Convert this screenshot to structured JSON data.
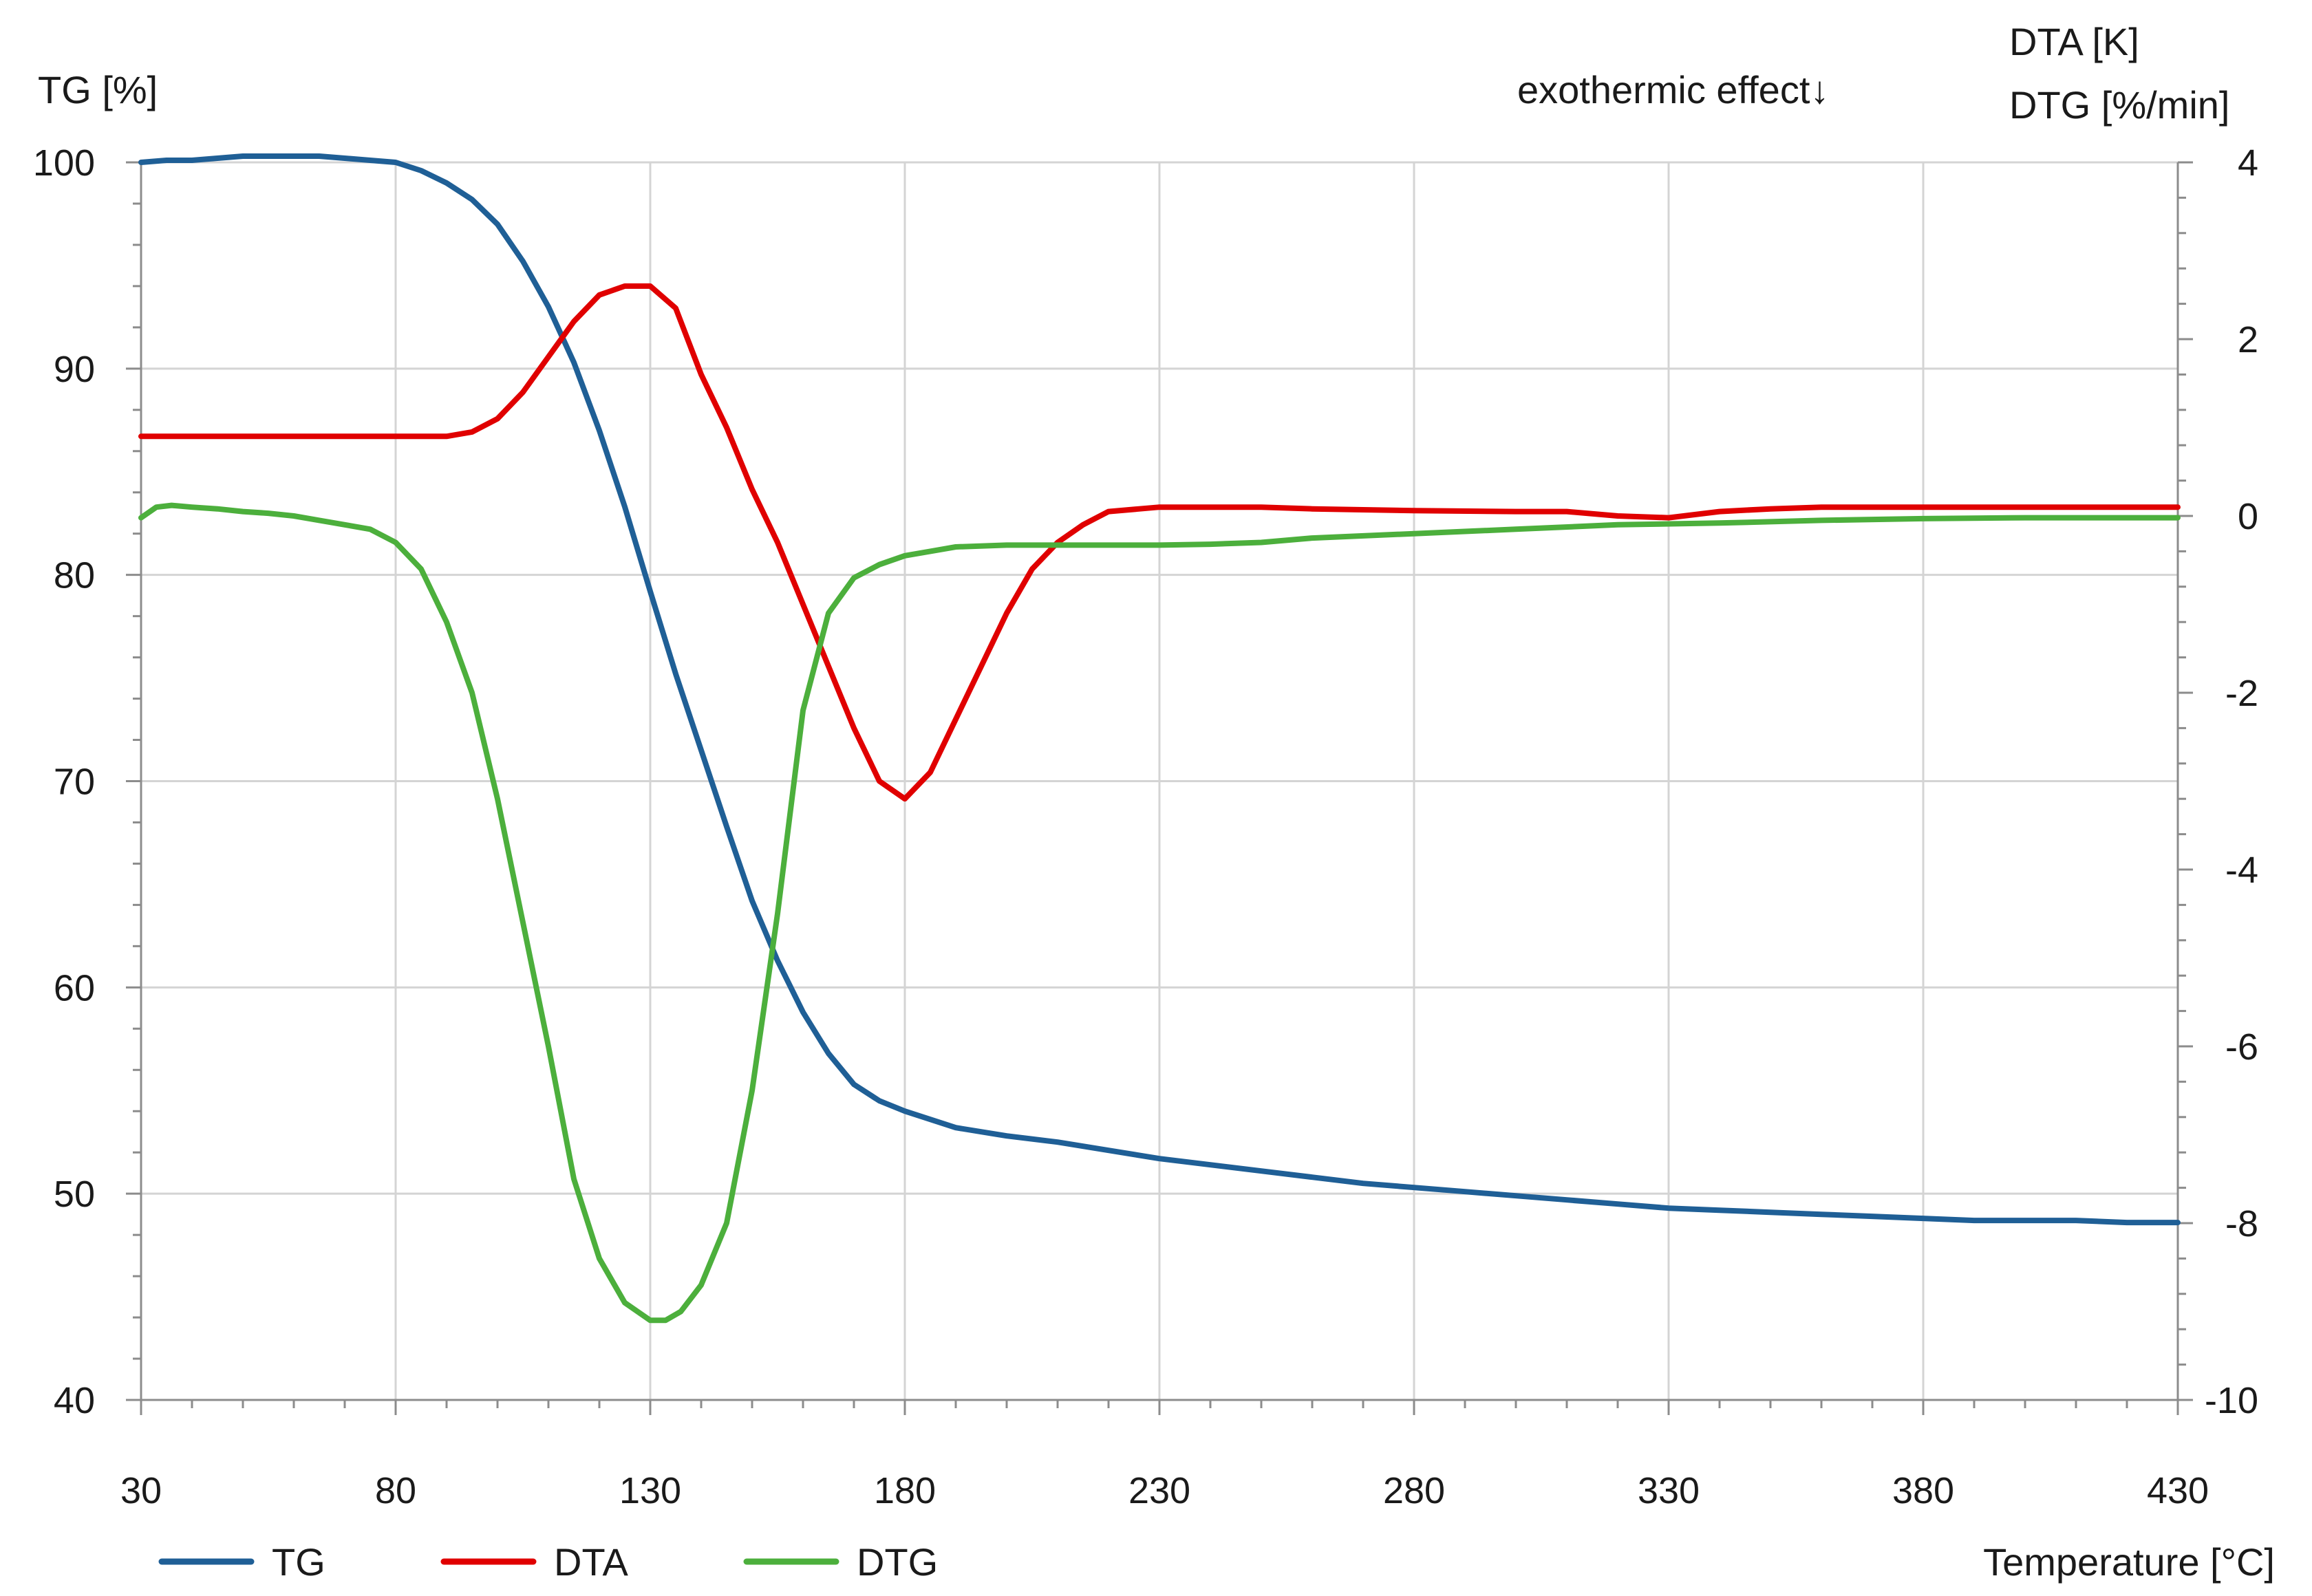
{
  "chart_data": {
    "type": "line",
    "title": "",
    "xlabel": "Temperature [°C]",
    "ylabel_left": "TG [%]",
    "ylabel_right_lines": [
      "DTA [K]",
      "DTG [%/min]"
    ],
    "annotation": "exothermic effect↓",
    "xlim": [
      30,
      430
    ],
    "ylim_left": [
      40,
      100
    ],
    "ylim_right": [
      -10,
      4
    ],
    "x_ticks": [
      30,
      80,
      130,
      180,
      230,
      280,
      330,
      380,
      430
    ],
    "y_ticks_left": [
      40,
      50,
      60,
      70,
      80,
      90,
      100
    ],
    "y_ticks_right": [
      -10,
      -8,
      -6,
      -4,
      -2,
      0,
      2,
      4
    ],
    "grid": true,
    "legend_position": "bottom-left",
    "series": [
      {
        "name": "TG",
        "axis": "left",
        "color": "#1f5f96",
        "x": [
          30,
          35,
          40,
          45,
          50,
          55,
          60,
          65,
          70,
          75,
          80,
          85,
          90,
          95,
          100,
          105,
          110,
          115,
          120,
          125,
          130,
          135,
          140,
          145,
          150,
          155,
          160,
          165,
          170,
          175,
          180,
          190,
          200,
          210,
          220,
          230,
          240,
          250,
          260,
          270,
          280,
          290,
          300,
          310,
          320,
          330,
          340,
          350,
          360,
          370,
          380,
          390,
          400,
          410,
          420,
          430
        ],
        "values": [
          100,
          100.1,
          100.1,
          100.2,
          100.3,
          100.3,
          100.3,
          100.3,
          100.2,
          100.1,
          100,
          99.6,
          99,
          98.2,
          97,
          95.2,
          93,
          90.3,
          87,
          83.3,
          79.2,
          75.2,
          71.5,
          67.8,
          64.2,
          61.3,
          58.8,
          56.8,
          55.3,
          54.5,
          54,
          53.2,
          52.8,
          52.5,
          52.1,
          51.7,
          51.4,
          51.1,
          50.8,
          50.5,
          50.3,
          50.1,
          49.9,
          49.7,
          49.5,
          49.3,
          49.2,
          49.1,
          49,
          48.9,
          48.8,
          48.7,
          48.7,
          48.7,
          48.6,
          48.6
        ]
      },
      {
        "name": "DTA",
        "axis": "right",
        "color": "#e00000",
        "x": [
          30,
          40,
          50,
          60,
          70,
          80,
          85,
          90,
          95,
          100,
          105,
          110,
          115,
          120,
          125,
          130,
          135,
          140,
          145,
          150,
          155,
          160,
          165,
          170,
          175,
          180,
          185,
          190,
          195,
          200,
          205,
          210,
          215,
          220,
          230,
          240,
          250,
          260,
          280,
          300,
          310,
          320,
          330,
          340,
          350,
          360,
          380,
          400,
          430
        ],
        "values": [
          0.9,
          0.9,
          0.9,
          0.9,
          0.9,
          0.9,
          0.9,
          0.9,
          0.95,
          1.1,
          1.4,
          1.8,
          2.2,
          2.5,
          2.6,
          2.6,
          2.35,
          1.6,
          1,
          0.3,
          -0.3,
          -1,
          -1.7,
          -2.4,
          -3,
          -3.2,
          -2.9,
          -2.3,
          -1.7,
          -1.1,
          -0.6,
          -0.3,
          -0.1,
          0.05,
          0.1,
          0.1,
          0.1,
          0.08,
          0.06,
          0.05,
          0.05,
          0,
          -0.02,
          0.05,
          0.08,
          0.1,
          0.1,
          0.1,
          0.1
        ]
      },
      {
        "name": "DTG",
        "axis": "right",
        "color": "#4caf3c",
        "x": [
          30,
          33,
          36,
          40,
          45,
          50,
          55,
          60,
          65,
          70,
          75,
          80,
          85,
          90,
          95,
          100,
          105,
          110,
          115,
          120,
          125,
          130,
          133,
          136,
          140,
          145,
          150,
          155,
          160,
          165,
          170,
          175,
          180,
          185,
          190,
          200,
          210,
          220,
          230,
          240,
          250,
          260,
          280,
          300,
          320,
          340,
          360,
          380,
          400,
          430
        ],
        "values": [
          -0.02,
          0.1,
          0.12,
          0.1,
          0.08,
          0.05,
          0.03,
          0,
          -0.05,
          -0.1,
          -0.15,
          -0.3,
          -0.6,
          -1.2,
          -2,
          -3.2,
          -4.6,
          -6,
          -7.5,
          -8.4,
          -8.9,
          -9.1,
          -9.1,
          -9,
          -8.7,
          -8,
          -6.5,
          -4.5,
          -2.2,
          -1.1,
          -0.7,
          -0.55,
          -0.45,
          -0.4,
          -0.35,
          -0.33,
          -0.33,
          -0.33,
          -0.33,
          -0.32,
          -0.3,
          -0.25,
          -0.2,
          -0.15,
          -0.1,
          -0.08,
          -0.05,
          -0.03,
          -0.02,
          -0.02
        ]
      }
    ]
  }
}
